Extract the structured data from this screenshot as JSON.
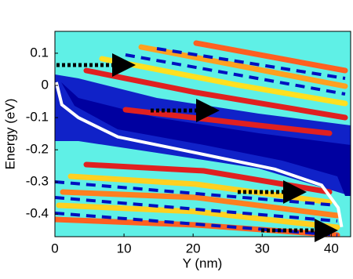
{
  "chart_data": {
    "type": "line",
    "x_label": "Y (nm)",
    "y_label": "Energy (eV)",
    "xlim": [
      0,
      42.8
    ],
    "ylim": [
      -0.47,
      0.168
    ],
    "xticks": [
      0,
      10,
      20,
      30,
      40
    ],
    "yticks": [
      0.1,
      0,
      -0.1,
      -0.2,
      -0.3,
      -0.4
    ],
    "series": [
      {
        "color": "#ffffff",
        "x": [
          0.2,
          1,
          3.4,
          9.1,
          20.5,
          31.8,
          38.6,
          41,
          41.5
        ],
        "values": [
          0.01,
          -0.06,
          -0.1,
          -0.16,
          -0.21,
          -0.26,
          -0.31,
          -0.38,
          -0.44
        ]
      }
    ]
  }
}
